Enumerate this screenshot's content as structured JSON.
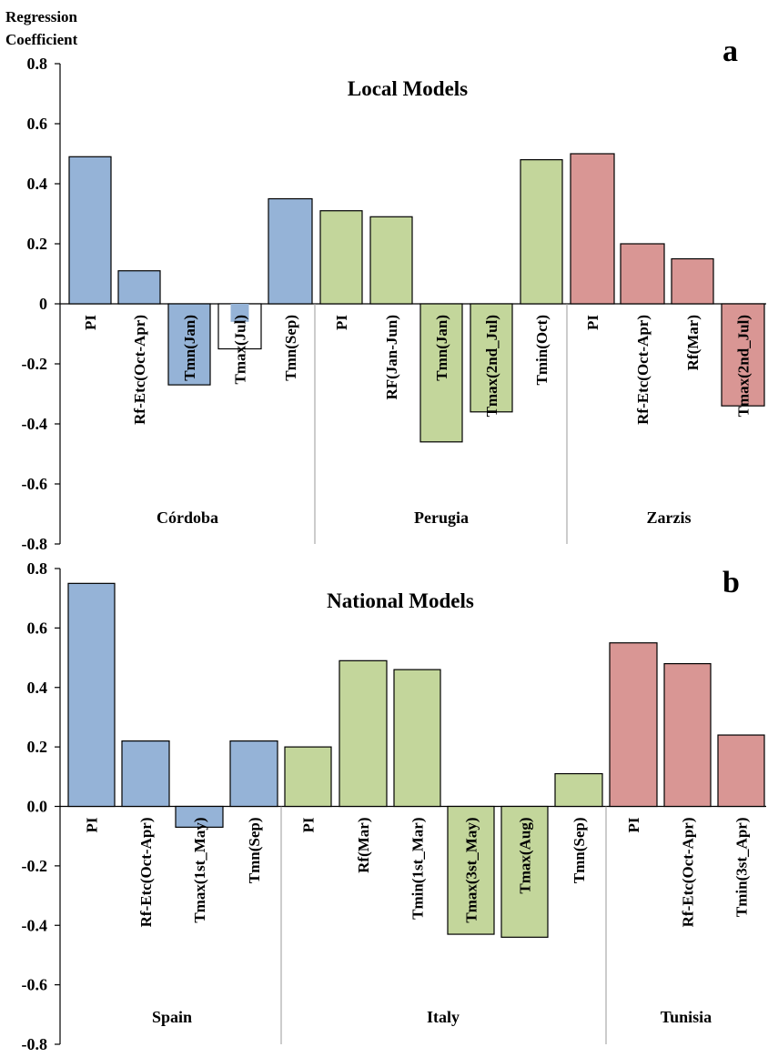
{
  "ylabel_lines": [
    "Regression",
    "Coefficient"
  ],
  "colors": {
    "blue": "#95b3d7",
    "green": "#c3d69b",
    "red": "#d99694"
  },
  "chart_data": [
    {
      "type": "bar",
      "panel": "a",
      "title": "Local Models",
      "ylabel": "Regression Coefficient",
      "ylim": [
        -0.8,
        0.8
      ],
      "yticks": [
        "0.8",
        "0.6",
        "0.4",
        "0.2",
        "0",
        "-0.2",
        "-0.4",
        "-0.6",
        "-0.8"
      ],
      "groups": [
        {
          "name": "Córdoba",
          "color": "blue",
          "bars": [
            {
              "label": "PI",
              "value": 0.49
            },
            {
              "label": "Rf-Etc(Oct-Apr)",
              "value": 0.11
            },
            {
              "label": "Tmn(Jan)",
              "value": -0.27
            },
            {
              "label": "Tmax(Jul)",
              "value": -0.15,
              "style": "white-with-blue-inner",
              "inner_value": -0.06
            },
            {
              "label": "Tmn(Sep)",
              "value": 0.35
            }
          ]
        },
        {
          "name": "Perugia",
          "color": "green",
          "bars": [
            {
              "label": "PI",
              "value": 0.31
            },
            {
              "label": "RF(Jan-Jun)",
              "value": 0.29
            },
            {
              "label": "Tmn(Jan)",
              "value": -0.46
            },
            {
              "label": "Tmax(2nd_Jul)",
              "value": -0.36
            },
            {
              "label": "Tmin(Oct)",
              "value": 0.48
            }
          ]
        },
        {
          "name": "Zarzis",
          "color": "red",
          "bars": [
            {
              "label": "PI",
              "value": 0.5
            },
            {
              "label": "Rf-Etc(Oct-Apr)",
              "value": 0.2
            },
            {
              "label": "Rf(Mar)",
              "value": 0.15
            },
            {
              "label": "Tmax(2nd_Jul)",
              "value": -0.34
            }
          ]
        }
      ]
    },
    {
      "type": "bar",
      "panel": "b",
      "title": "National Models",
      "ylim": [
        -0.8,
        0.8
      ],
      "yticks": [
        "0.8",
        "0.6",
        "0.4",
        "0.2",
        "0.0",
        "-0.2",
        "-0.4",
        "-0.6",
        "-0.8"
      ],
      "groups": [
        {
          "name": "Spain",
          "color": "blue",
          "bars": [
            {
              "label": "PI",
              "value": 0.75
            },
            {
              "label": "Rf-Etc(Oct-Apr)",
              "value": 0.22
            },
            {
              "label": "Tmax(1st_May)",
              "value": -0.07
            },
            {
              "label": "Tmn(Sep)",
              "value": 0.22
            }
          ]
        },
        {
          "name": "Italy",
          "color": "green",
          "bars": [
            {
              "label": "PI",
              "value": 0.2
            },
            {
              "label": "Rf(Mar)",
              "value": 0.49
            },
            {
              "label": "Tmin(1st_Mar)",
              "value": 0.46
            },
            {
              "label": "Tmax(3st_May)",
              "value": -0.43
            },
            {
              "label": "Tmax(Aug)",
              "value": -0.44
            },
            {
              "label": "Tmn(Sep)",
              "value": 0.11
            }
          ]
        },
        {
          "name": "Tunisia",
          "color": "red",
          "bars": [
            {
              "label": "PI",
              "value": 0.55
            },
            {
              "label": "Rf-Etc(Oct-Apr)",
              "value": 0.48
            },
            {
              "label": "Tmin(3st_Apr)",
              "value": 0.24
            }
          ]
        }
      ]
    }
  ]
}
